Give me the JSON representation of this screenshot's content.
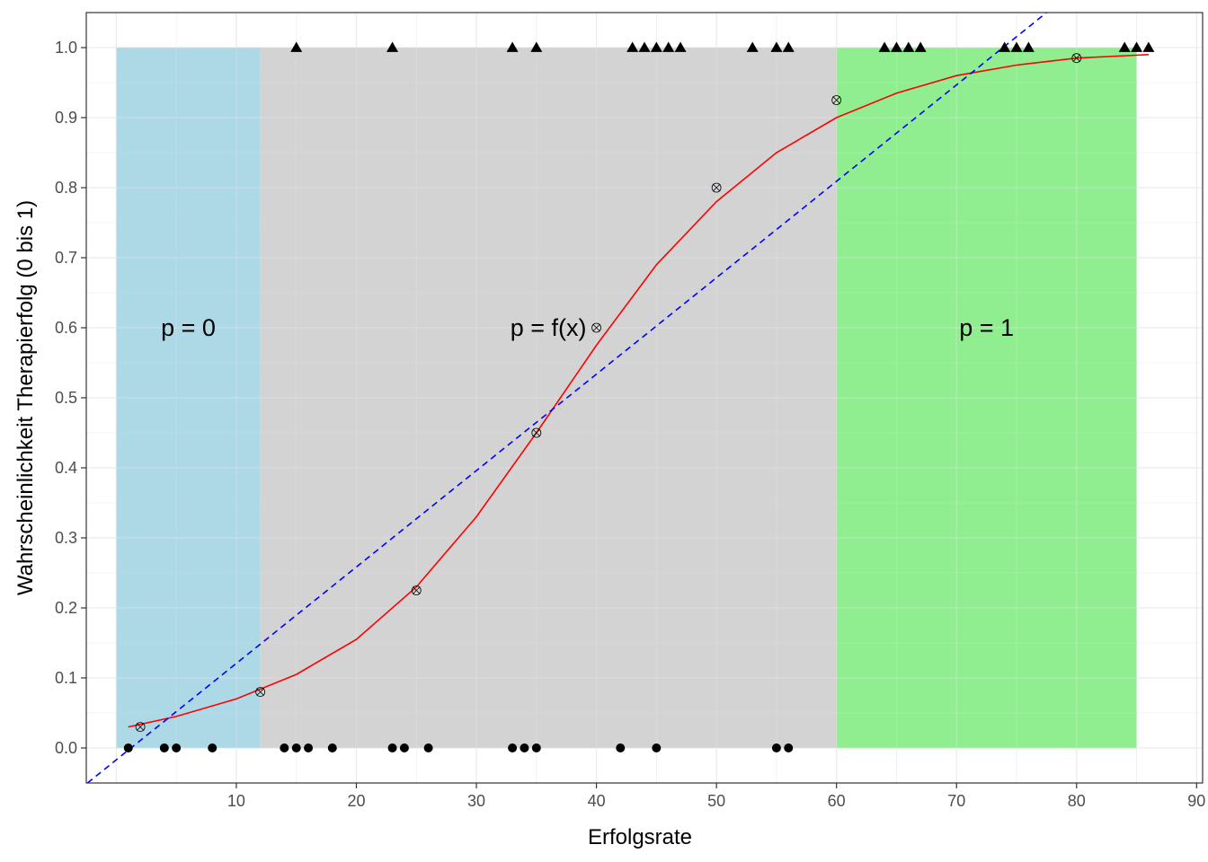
{
  "chart_data": {
    "type": "scatter",
    "xlabel": "Erfolgsrate",
    "ylabel": "Wahrscheinlichkeit Therapierfolg (0 bis 1)",
    "xlim": [
      -2.5,
      90.5
    ],
    "ylim": [
      -0.05,
      1.05
    ],
    "x_ticks": [
      10,
      20,
      30,
      40,
      50,
      60,
      70,
      80,
      90
    ],
    "y_ticks": [
      0.0,
      0.1,
      0.2,
      0.3,
      0.4,
      0.5,
      0.6,
      0.7,
      0.8,
      0.9,
      1.0
    ],
    "y_tick_labels": [
      "0.0",
      "0.1",
      "0.2",
      "0.3",
      "0.4",
      "0.5",
      "0.6",
      "0.7",
      "0.8",
      "0.9",
      "1.0"
    ],
    "grid": true,
    "regions": [
      {
        "label": "p = 0",
        "x_range": [
          0,
          12
        ],
        "y_range": [
          0,
          1
        ],
        "color": "#add8e6"
      },
      {
        "label": "p = f(x)",
        "x_range": [
          12,
          60
        ],
        "y_range": [
          0,
          1
        ],
        "color": "#d3d3d3"
      },
      {
        "label": "p = 1",
        "x_range": [
          60,
          85
        ],
        "y_range": [
          0,
          1
        ],
        "color": "#90ee90"
      }
    ],
    "region_label_y": 0.6,
    "series": [
      {
        "marker": "triangle",
        "color": "#000000",
        "x": [
          15,
          23,
          33,
          35,
          43,
          44,
          45,
          46,
          47,
          53,
          55,
          56,
          64,
          65,
          66,
          67,
          74,
          75,
          76,
          84,
          85,
          86
        ],
        "y": [
          1,
          1,
          1,
          1,
          1,
          1,
          1,
          1,
          1,
          1,
          1,
          1,
          1,
          1,
          1,
          1,
          1,
          1,
          1,
          1,
          1,
          1
        ]
      },
      {
        "marker": "circle",
        "color": "#000000",
        "x": [
          1,
          4,
          5,
          8,
          14,
          15,
          16,
          18,
          23,
          24,
          26,
          33,
          34,
          35,
          42,
          45,
          55,
          56
        ],
        "y": [
          0,
          0,
          0,
          0,
          0,
          0,
          0,
          0,
          0,
          0,
          0,
          0,
          0,
          0,
          0,
          0,
          0,
          0
        ]
      },
      {
        "marker": "crossed-circle",
        "color": "#000000",
        "x": [
          2,
          12,
          25,
          35,
          40,
          50,
          60,
          80
        ],
        "y": [
          0.03,
          0.08,
          0.225,
          0.45,
          0.6,
          0.8,
          0.925,
          0.985
        ]
      }
    ],
    "lines": [
      {
        "style": "solid",
        "color": "#ff0000",
        "x": [
          1,
          5,
          10,
          15,
          20,
          25,
          30,
          35,
          40,
          45,
          50,
          55,
          60,
          65,
          70,
          75,
          80,
          86
        ],
        "y": [
          0.03,
          0.045,
          0.07,
          0.105,
          0.155,
          0.23,
          0.33,
          0.45,
          0.575,
          0.69,
          0.78,
          0.85,
          0.9,
          0.935,
          0.96,
          0.975,
          0.985,
          0.99
        ]
      },
      {
        "style": "dashed",
        "color": "#0000ff",
        "x": [
          -2.4,
          77.5
        ],
        "y": [
          -0.05,
          1.05
        ]
      }
    ]
  }
}
